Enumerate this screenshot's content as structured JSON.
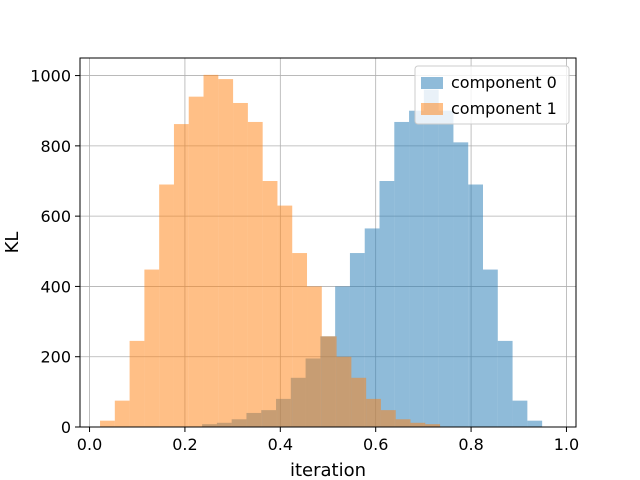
{
  "chart_data": {
    "type": "bar",
    "subtype": "overlapping-histogram",
    "xlabel": "iteration",
    "ylabel": "KL",
    "xlim": [
      -0.02,
      1.02
    ],
    "ylim": [
      0,
      1050
    ],
    "xticks": [
      0.0,
      0.2,
      0.4,
      0.6,
      0.8,
      1.0
    ],
    "xtick_labels": [
      "0.0",
      "0.2",
      "0.4",
      "0.6",
      "0.8",
      "1.0"
    ],
    "yticks": [
      0,
      200,
      400,
      600,
      800,
      1000
    ],
    "ytick_labels": [
      "0",
      "200",
      "400",
      "600",
      "800",
      "1000"
    ],
    "grid": true,
    "legend_position": "top-right",
    "opacity": 0.5,
    "series": [
      {
        "name": "component 0",
        "color": "#1f77b4",
        "bin_edges": [
          0.205,
          0.236,
          0.267,
          0.298,
          0.329,
          0.36,
          0.391,
          0.422,
          0.453,
          0.484,
          0.515,
          0.546,
          0.577,
          0.608,
          0.639,
          0.67,
          0.701,
          0.732,
          0.763,
          0.794,
          0.825,
          0.856,
          0.887,
          0.918,
          0.949,
          0.98
        ],
        "values": [
          1,
          8,
          12,
          22,
          40,
          48,
          80,
          140,
          195,
          258,
          400,
          495,
          565,
          700,
          868,
          900,
          960,
          900,
          810,
          690,
          448,
          245,
          75,
          18,
          1
        ]
      },
      {
        "name": "component 1",
        "color": "#ff7f0e",
        "bin_edges": [
          0.022,
          0.053,
          0.084,
          0.115,
          0.146,
          0.177,
          0.208,
          0.239,
          0.27,
          0.301,
          0.332,
          0.363,
          0.394,
          0.425,
          0.456,
          0.487,
          0.518,
          0.549,
          0.58,
          0.611,
          0.642,
          0.673,
          0.704,
          0.735
        ],
        "values": [
          18,
          75,
          245,
          448,
          690,
          862,
          940,
          1002,
          990,
          922,
          868,
          700,
          630,
          495,
          400,
          258,
          200,
          140,
          80,
          48,
          22,
          12,
          8
        ]
      }
    ]
  }
}
